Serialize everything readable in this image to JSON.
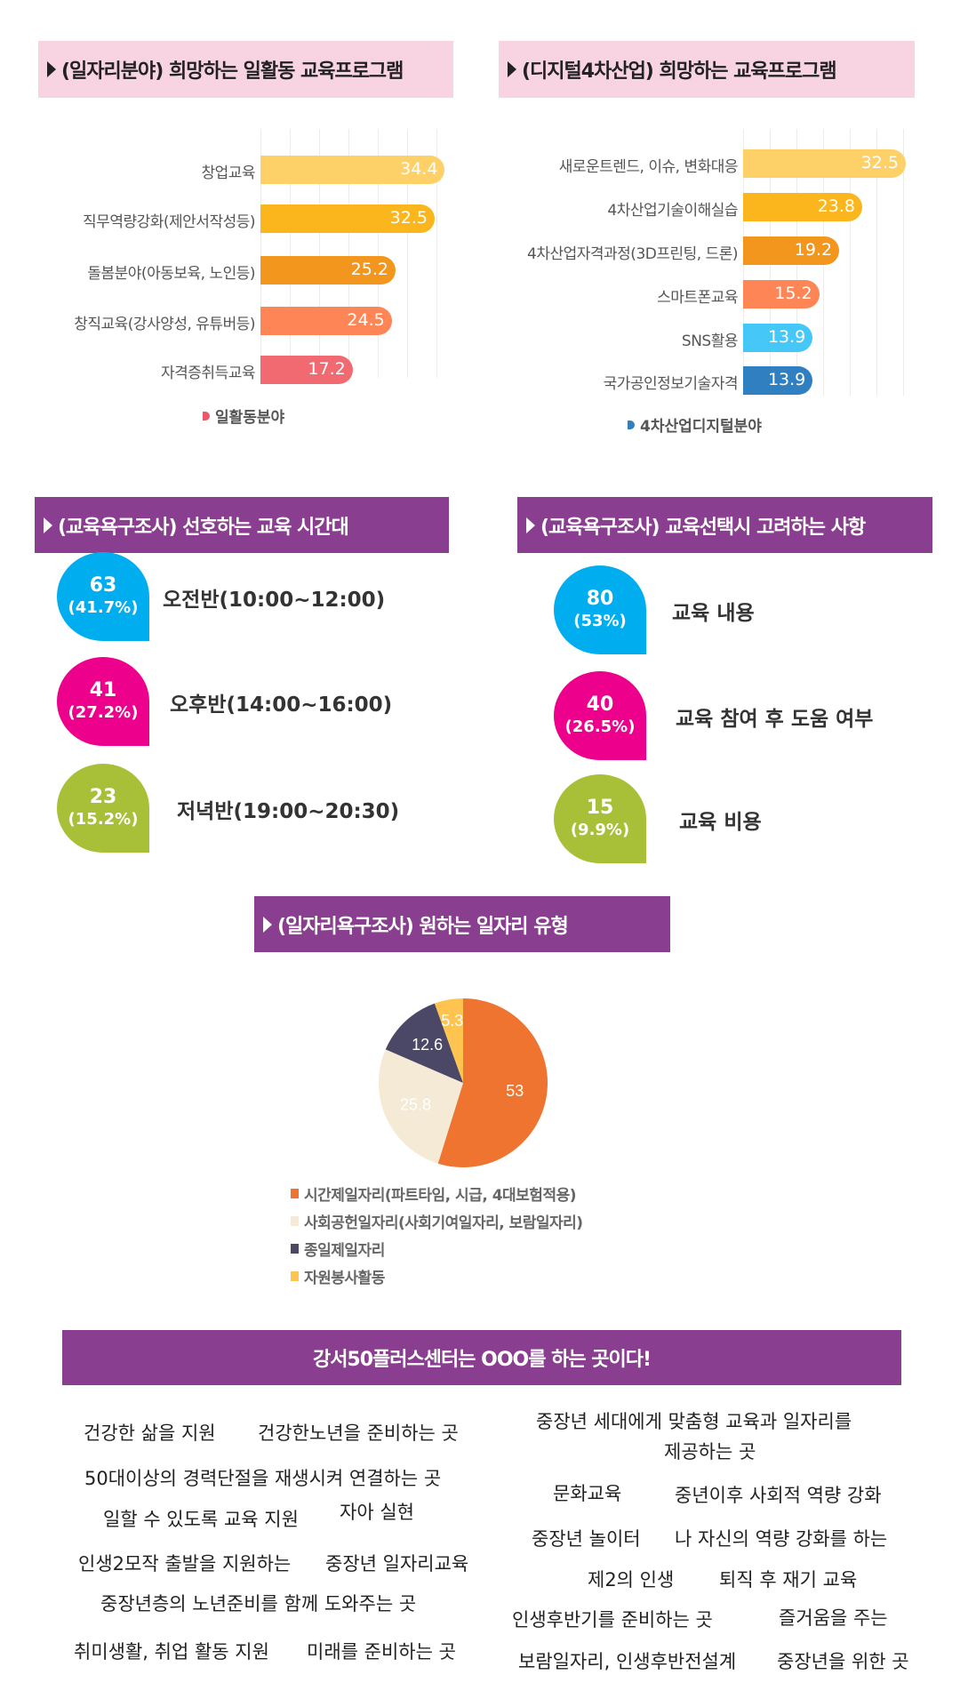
{
  "sections": {
    "job_program": "(일자리분야) 희망하는 일활동 교육프로그램",
    "digital_program": "(디지털4차산업) 희망하는 교육프로그램",
    "time_pref": "(교육욕구조사) 선호하는 교육 시간대",
    "selection_factor": "(교육욕구조사)  교육선택시 고려하는 사항",
    "job_type": "(일자리욕구조사) 원하는 일자리 유형",
    "slogan": "강서50플러스센터는 OOO를 하는 곳이다!"
  },
  "colors": {
    "pink_header": "#f8d3e2",
    "purple_header": "#893e8f",
    "cyan": "#00aeef",
    "magenta": "#ec008c",
    "olive": "#a8bf38"
  },
  "chart_data": [
    {
      "type": "bar",
      "orientation": "horizontal",
      "legend": "일활동분야",
      "legend_color": "#e8596a",
      "legend_position": "bottom",
      "categories": [
        "창업교육",
        "직무역량강화(제안서작성등)",
        "돌봄분야(아동보육, 노인등)",
        "창직교육(강사양성, 유튜버등)",
        "자격증취득교육"
      ],
      "values": [
        34.4,
        32.5,
        25.2,
        24.5,
        17.2
      ],
      "colors": [
        "#fdd068",
        "#fbb61e",
        "#f3961d",
        "#fe8556",
        "#f16a72"
      ],
      "grid": true
    },
    {
      "type": "bar",
      "orientation": "horizontal",
      "legend": "4차산업디지털분야",
      "legend_color": "#2f7fc1",
      "legend_position": "bottom",
      "categories": [
        "새로운트렌드, 이슈, 변화대응",
        "4차산업기술이해실습",
        "4차산업자격과정(3D프린팅, 드론)",
        "스마트폰교육",
        "SNS활용",
        "국가공인정보기술자격"
      ],
      "values": [
        32.5,
        23.8,
        19.2,
        15.2,
        13.9,
        13.9
      ],
      "colors": [
        "#fdd068",
        "#fbb61e",
        "#f3961d",
        "#fe8556",
        "#45c8f8",
        "#2f7fc1"
      ],
      "grid": true
    },
    {
      "type": "pie",
      "categories": [
        "시간제일자리(파트타임, 시급, 4대보험적용)",
        "사회공헌일자리(사회기여일자리, 보람일자리)",
        "종일제일자리",
        "자원봉사활동"
      ],
      "values": [
        53,
        25.8,
        12.6,
        5.3
      ],
      "colors": [
        "#ef7430",
        "#f4ead6",
        "#4b4867",
        "#fec44f"
      ],
      "legend_position": "bottom"
    }
  ],
  "time_pref": [
    {
      "count": "63",
      "pct": "(41.7%)",
      "label": "오전반(10:00~12:00)",
      "color": "#00aeef"
    },
    {
      "count": "41",
      "pct": "(27.2%)",
      "label": "오후반(14:00~16:00)",
      "color": "#ec008c"
    },
    {
      "count": "23",
      "pct": "(15.2%)",
      "label": "저녁반(19:00~20:30)",
      "color": "#a8bf38"
    }
  ],
  "selection_factor": [
    {
      "count": "80",
      "pct": "(53%)",
      "label": "교육 내용",
      "color": "#00aeef"
    },
    {
      "count": "40",
      "pct": "(26.5%)",
      "label": "교육 참여 후 도움 여부",
      "color": "#ec008c"
    },
    {
      "count": "15",
      "pct": "(9.9%)",
      "label": "교육 비용",
      "color": "#a8bf38"
    }
  ],
  "phrases": [
    "건강한 삶을 지원",
    "건강한노년을 준비하는 곳",
    "50대이상의 경력단절을 재생시켜 연결하는 곳",
    "일할 수 있도록 교육 지원",
    "자아 실현",
    "인생2모작 출발을 지원하는",
    "중장년 일자리교육",
    "중장년층의 노년준비를 함께 도와주는 곳",
    "취미생활, 취업 활동 지원",
    "미래를 준비하는 곳",
    "중장년 세대에게 맞춤형 교육과 일자리를",
    "제공하는 곳",
    "문화교육",
    "중년이후 사회적 역량 강화",
    "중장년 놀이터",
    "나 자신의 역량 강화를 하는",
    "제2의 인생",
    "퇴직 후 재기 교육",
    "인생후반기를 준비하는 곳",
    "즐거움을 주는",
    "보람일자리, 인생후반전설계",
    "중장년을 위한 곳"
  ]
}
